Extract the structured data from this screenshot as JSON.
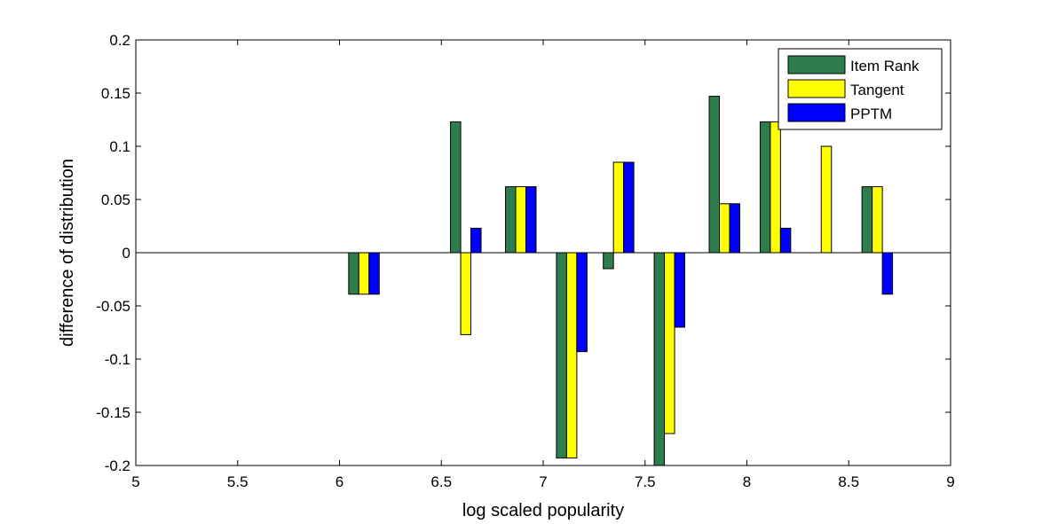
{
  "chart_data": {
    "type": "bar",
    "xlabel": "log scaled popularity",
    "ylabel": "difference of distribution",
    "xlim": [
      5,
      9
    ],
    "ylim": [
      -0.2,
      0.2
    ],
    "xticks": [
      "5",
      "5.5",
      "6",
      "6.5",
      "7",
      "7.5",
      "8",
      "8.5",
      "9"
    ],
    "yticks": [
      "-0.2",
      "-0.15",
      "-0.1",
      "-0.05",
      "0",
      "0.05",
      "0.1",
      "0.15",
      "0.2"
    ],
    "bar_width": 0.05,
    "series_offsets": [
      -0.05,
      0,
      0.05
    ],
    "x": [
      6.12,
      6.62,
      6.89,
      7.14,
      7.37,
      7.62,
      7.89,
      8.14,
      8.39,
      8.64
    ],
    "series": [
      {
        "name": "Item Rank",
        "color": "#2e7d4f",
        "values": [
          -0.039,
          0.123,
          0.062,
          -0.193,
          -0.015,
          -0.2,
          0.147,
          0.123,
          0.0,
          0.062
        ]
      },
      {
        "name": "Tangent",
        "color": "#ffff00",
        "values": [
          -0.039,
          -0.077,
          0.062,
          -0.193,
          0.085,
          -0.17,
          0.046,
          0.123,
          0.1,
          0.062
        ]
      },
      {
        "name": "PPTM",
        "color": "#0000ff",
        "values": [
          -0.039,
          0.023,
          0.062,
          -0.093,
          0.085,
          -0.07,
          0.046,
          0.023,
          0.0,
          -0.039
        ]
      }
    ],
    "legend_position": "top-right",
    "grid": false
  }
}
